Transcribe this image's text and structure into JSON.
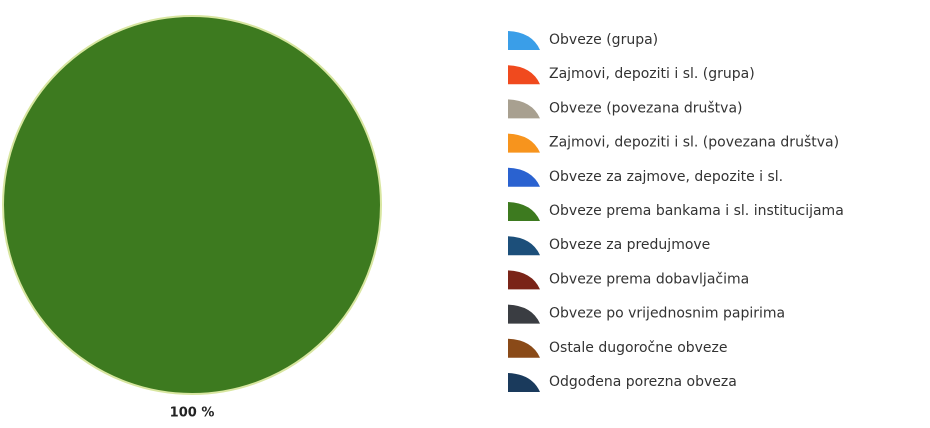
{
  "chart_data": {
    "type": "pie",
    "categories": [
      "Obveze (grupa)",
      "Zajmovi, depoziti i sl. (grupa)",
      "Obveze (povezana društva)",
      "Zajmovi, depoziti i sl. (povezana društva)",
      "Obveze za zajmove, depozite i sl.",
      "Obveze prema bankama i sl. institucijama",
      "Obveze za predujmove",
      "Obveze prema dobavljačima",
      "Obveze po vrijednosnim papirima",
      "Ostale dugoročne obveze",
      "Odgođena porezna obveza"
    ],
    "values": [
      0,
      0,
      0,
      0,
      0,
      100,
      0,
      0,
      0,
      0,
      0
    ],
    "value_labels": [
      null,
      null,
      null,
      null,
      null,
      "100 %",
      null,
      null,
      null,
      null,
      null
    ],
    "colors": [
      "#3a9ee8",
      "#f04a1e",
      "#a8a090",
      "#f7941d",
      "#2a62d0",
      "#3d7a1f",
      "#1c4f7a",
      "#7a2418",
      "#3a3d42",
      "#8a4a18",
      "#1a3a5c"
    ]
  }
}
